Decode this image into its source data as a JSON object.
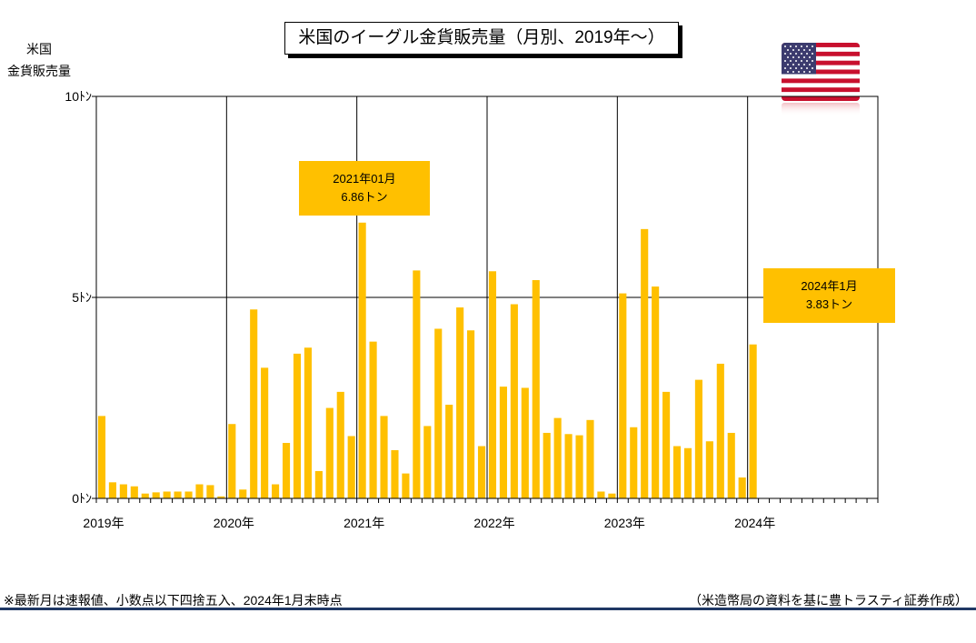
{
  "chart_data": {
    "type": "bar",
    "title": "米国のイーグル金貨販売量（月別、2019年～）",
    "ylabel_lines": [
      "米国",
      "金貨販売量"
    ],
    "ylim": [
      0,
      10
    ],
    "y_ticks": [
      {
        "value": 0,
        "label": "0ﾄﾝ"
      },
      {
        "value": 5,
        "label": "5ﾄﾝ"
      },
      {
        "value": 10,
        "label": "10ﾄﾝ"
      }
    ],
    "x_labels": [
      "2019年",
      "2020年",
      "2021年",
      "2022年",
      "2023年",
      "2024年"
    ],
    "months_total": 72,
    "start": "2019-01",
    "values": [
      2.05,
      0.4,
      0.35,
      0.3,
      0.12,
      0.15,
      0.17,
      0.17,
      0.17,
      0.35,
      0.33,
      0.05,
      1.85,
      0.22,
      4.7,
      3.25,
      0.35,
      1.38,
      3.6,
      3.75,
      0.68,
      2.25,
      2.65,
      1.55,
      6.86,
      3.9,
      2.05,
      1.2,
      0.62,
      5.67,
      1.8,
      4.22,
      2.33,
      4.75,
      4.18,
      1.3,
      5.65,
      2.78,
      4.83,
      2.75,
      5.43,
      1.63,
      2.0,
      1.6,
      1.57,
      1.95,
      0.17,
      0.12,
      5.1,
      1.77,
      6.7,
      5.27,
      2.65,
      1.3,
      1.25,
      2.95,
      1.42,
      3.35,
      1.63,
      0.52,
      3.83
    ],
    "bar_color": "#ffc000",
    "grid": true,
    "annotations": [
      {
        "line1": "2021年01月",
        "line2": "6.86トン"
      },
      {
        "line1": "2024年1月",
        "line2": "3.83トン"
      }
    ]
  },
  "notes": {
    "left": "※最新月は速報値、小数点以下四捨五入、2024年1月末時点",
    "right": "（米造幣局の資料を基に豊トラスティ証券作成）"
  },
  "flag_icon": "us-flag-icon",
  "bottom_rule_color": "#1f3864"
}
